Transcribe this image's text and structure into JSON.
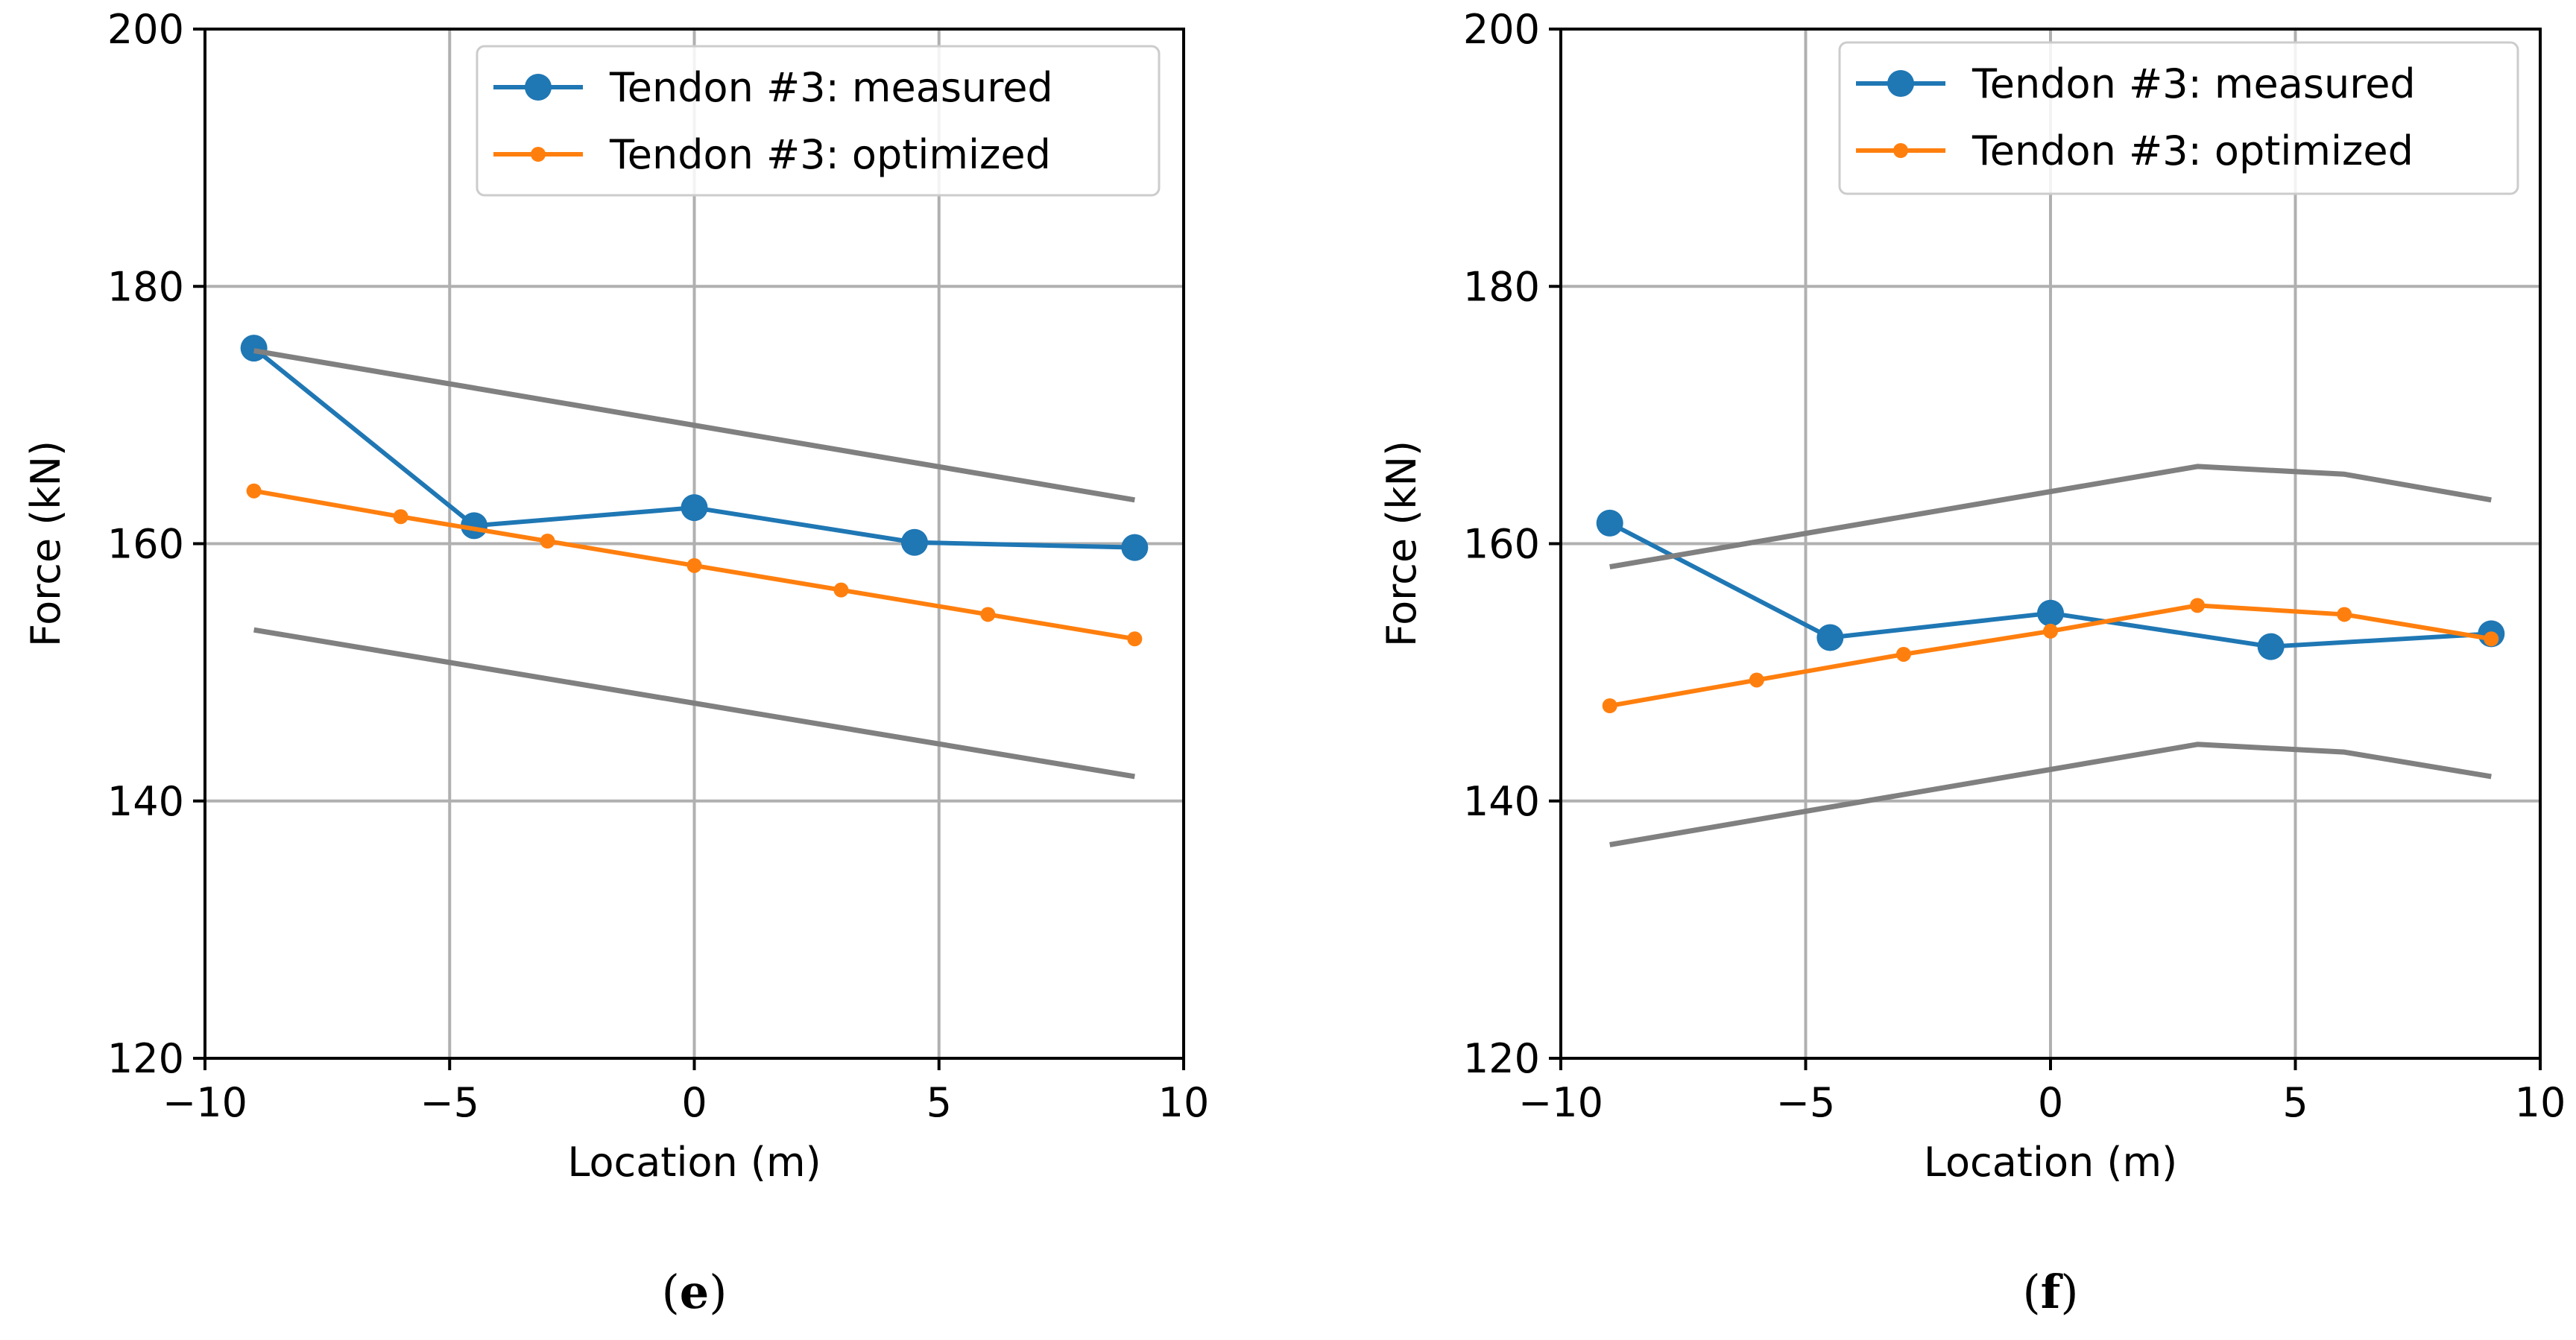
{
  "chart_data": [
    {
      "type": "line",
      "panel_label": "e",
      "xlabel": "Location (m)",
      "ylabel": "Force (kN)",
      "xlim": [
        -10,
        10
      ],
      "ylim": [
        120,
        200
      ],
      "xticks": [
        -10,
        -5,
        0,
        5,
        10
      ],
      "xtick_labels": [
        "−10",
        "−5",
        "0",
        "5",
        "10"
      ],
      "yticks": [
        120,
        140,
        160,
        180,
        200
      ],
      "ytick_labels": [
        "120",
        "140",
        "160",
        "180",
        "200"
      ],
      "grid": true,
      "legend_position": "top-right",
      "series": [
        {
          "name": "Tendon #3: measured",
          "color": "#1f77b4",
          "marker": "large",
          "in_legend": true,
          "x": [
            -9,
            -4.5,
            0,
            4.5,
            9
          ],
          "y": [
            175.2,
            161.4,
            162.8,
            160.1,
            159.7
          ]
        },
        {
          "name": "Tendon #3: optimized",
          "color": "#ff7f0e",
          "marker": "small",
          "in_legend": true,
          "x": [
            -9,
            -6,
            -3,
            0,
            3,
            6,
            9
          ],
          "y": [
            164.1,
            162.1,
            160.2,
            158.3,
            156.4,
            154.5,
            152.6
          ]
        },
        {
          "name": "upper bound",
          "color": "#808080",
          "marker": "none",
          "in_legend": false,
          "x": [
            -9,
            9
          ],
          "y": [
            175.0,
            163.4
          ]
        },
        {
          "name": "lower bound",
          "color": "#808080",
          "marker": "none",
          "in_legend": false,
          "x": [
            -9,
            9
          ],
          "y": [
            153.3,
            141.9
          ]
        }
      ]
    },
    {
      "type": "line",
      "panel_label": "f",
      "xlabel": "Location (m)",
      "ylabel": "Force (kN)",
      "xlim": [
        -10,
        10
      ],
      "ylim": [
        120,
        200
      ],
      "xticks": [
        -10,
        -5,
        0,
        5,
        10
      ],
      "xtick_labels": [
        "−10",
        "−5",
        "0",
        "5",
        "10"
      ],
      "yticks": [
        120,
        140,
        160,
        180,
        200
      ],
      "ytick_labels": [
        "120",
        "140",
        "160",
        "180",
        "200"
      ],
      "grid": true,
      "legend_position": "top-right",
      "series": [
        {
          "name": "Tendon #3: measured",
          "color": "#1f77b4",
          "marker": "large",
          "in_legend": true,
          "x": [
            -9,
            -4.5,
            0,
            4.5,
            9
          ],
          "y": [
            161.6,
            152.7,
            154.6,
            152.0,
            153.0
          ]
        },
        {
          "name": "Tendon #3: optimized",
          "color": "#ff7f0e",
          "marker": "small",
          "in_legend": true,
          "x": [
            -9,
            -6,
            -3,
            0,
            3,
            6,
            9
          ],
          "y": [
            147.4,
            149.4,
            151.4,
            153.2,
            155.2,
            154.5,
            152.6
          ]
        },
        {
          "name": "upper bound",
          "color": "#808080",
          "marker": "none",
          "in_legend": false,
          "x": [
            -9,
            3,
            6,
            9
          ],
          "y": [
            158.2,
            166.0,
            165.4,
            163.4
          ]
        },
        {
          "name": "lower bound",
          "color": "#808080",
          "marker": "none",
          "in_legend": false,
          "x": [
            -9,
            3,
            6,
            9
          ],
          "y": [
            136.6,
            144.4,
            143.8,
            141.9
          ]
        }
      ]
    }
  ]
}
